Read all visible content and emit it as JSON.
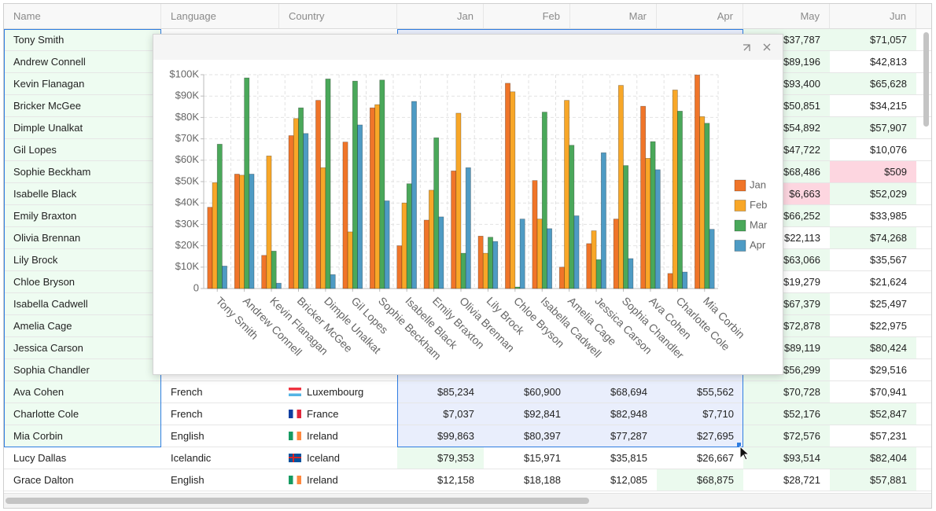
{
  "table": {
    "columns": [
      "Name",
      "Language",
      "Country",
      "Jan",
      "Feb",
      "Mar",
      "Apr",
      "May",
      "Jun"
    ],
    "rows": [
      {
        "name": "Tony Smith",
        "may": "$37,787",
        "jun": "$71,057"
      },
      {
        "name": "Andrew Connell",
        "may": "$89,196",
        "jun": "$42,813"
      },
      {
        "name": "Kevin Flanagan",
        "may": "$93,400",
        "jun": "$65,628"
      },
      {
        "name": "Bricker McGee",
        "may": "$50,851",
        "jun": "$34,215"
      },
      {
        "name": "Dimple Unalkat",
        "may": "$54,892",
        "jun": "$57,907"
      },
      {
        "name": "Gil Lopes",
        "may": "$47,722",
        "jun": "$10,076"
      },
      {
        "name": "Sophie Beckham",
        "may": "$68,486",
        "jun": "$509"
      },
      {
        "name": "Isabelle Black",
        "may": "$6,663",
        "jun": "$52,029"
      },
      {
        "name": "Emily Braxton",
        "may": "$66,252",
        "jun": "$33,985"
      },
      {
        "name": "Olivia Brennan",
        "may": "$22,113",
        "jun": "$74,268"
      },
      {
        "name": "Lily Brock",
        "may": "$63,066",
        "jun": "$35,567"
      },
      {
        "name": "Chloe Bryson",
        "may": "$19,279",
        "jun": "$21,624"
      },
      {
        "name": "Isabella Cadwell",
        "may": "$67,379",
        "jun": "$25,497"
      },
      {
        "name": "Amelia Cage",
        "may": "$72,878",
        "jun": "$22,975"
      },
      {
        "name": "Jessica Carson",
        "may": "$89,119",
        "jun": "$80,424"
      },
      {
        "name": "Sophia Chandler",
        "may": "$56,299",
        "jun": "$29,516"
      },
      {
        "name": "Ava Cohen",
        "language": "French",
        "country": "Luxembourg",
        "jan": "$85,234",
        "feb": "$60,900",
        "mar": "$68,694",
        "apr": "$55,562",
        "may": "$70,728",
        "jun": "$70,941"
      },
      {
        "name": "Charlotte Cole",
        "language": "French",
        "country": "France",
        "jan": "$7,037",
        "feb": "$92,841",
        "mar": "$82,948",
        "apr": "$7,710",
        "may": "$52,176",
        "jun": "$52,847"
      },
      {
        "name": "Mia Corbin",
        "language": "English",
        "country": "Ireland",
        "jan": "$99,863",
        "feb": "$80,397",
        "mar": "$77,287",
        "apr": "$27,695",
        "may": "$72,576",
        "jun": "$57,231"
      },
      {
        "name": "Lucy Dallas",
        "language": "Icelandic",
        "country": "Iceland",
        "jan": "$79,353",
        "feb": "$15,971",
        "mar": "$35,815",
        "apr": "$26,667",
        "may": "$93,514",
        "jun": "$82,404"
      },
      {
        "name": "Grace Dalton",
        "language": "English",
        "country": "Ireland",
        "jan": "$12,158",
        "feb": "$18,188",
        "mar": "$12,085",
        "apr": "$68,875",
        "may": "$28,721",
        "jun": "$57,881"
      }
    ]
  },
  "chart_data": {
    "type": "bar",
    "categories": [
      "Tony Smith",
      "Andrew Connell",
      "Kevin Flanagan",
      "Bricker McGee",
      "Dimple Unalkat",
      "Gil Lopes",
      "Sophie Beckham",
      "Isabelle Black",
      "Emily Braxton",
      "Olivia Brennan",
      "Lily Brock",
      "Chloe Bryson",
      "Isabella Cadwell",
      "Amelia Cage",
      "Jessica Carson",
      "Sophia Chandler",
      "Ava Cohen",
      "Charlotte Cole",
      "Mia Corbin"
    ],
    "series": [
      {
        "name": "Jan",
        "color": "#f07529",
        "values": [
          38000,
          53500,
          15500,
          71500,
          88000,
          68500,
          84500,
          20000,
          32000,
          55000,
          24500,
          96000,
          50500,
          10000,
          21000,
          32500,
          85234,
          7037,
          99863
        ]
      },
      {
        "name": "Feb",
        "color": "#f8a728",
        "values": [
          49500,
          53000,
          62000,
          79500,
          56500,
          26500,
          86000,
          40000,
          46000,
          82000,
          16500,
          92000,
          32500,
          88000,
          27000,
          95000,
          60900,
          92841,
          80397
        ]
      },
      {
        "name": "Mar",
        "color": "#4aa85a",
        "values": [
          67500,
          98500,
          17500,
          84500,
          98000,
          97000,
          97500,
          49000,
          70500,
          16500,
          24000,
          700,
          82500,
          67000,
          13500,
          57500,
          68694,
          82948,
          77287
        ]
      },
      {
        "name": "Apr",
        "color": "#4e9bc4",
        "values": [
          10500,
          53500,
          2500,
          72500,
          6500,
          76500,
          41000,
          87500,
          33500,
          56500,
          22000,
          32500,
          28000,
          34000,
          63500,
          14000,
          55562,
          7710,
          27695
        ]
      }
    ],
    "ylim": [
      0,
      100000
    ],
    "yticks": [
      0,
      {
        "value": 10000,
        "label": "$10K"
      },
      {
        "value": 20000,
        "label": "$20K"
      },
      {
        "value": 30000,
        "label": "$30K"
      },
      {
        "value": 40000,
        "label": "$40K"
      },
      {
        "value": 50000,
        "label": "$50K"
      },
      {
        "value": 60000,
        "label": "$60K"
      },
      {
        "value": 70000,
        "label": "$70K"
      },
      {
        "value": 80000,
        "label": "$80K"
      },
      {
        "value": 90000,
        "label": "$90K"
      },
      {
        "value": 100000,
        "label": "$100K"
      }
    ],
    "grid": true,
    "legend": "right"
  }
}
